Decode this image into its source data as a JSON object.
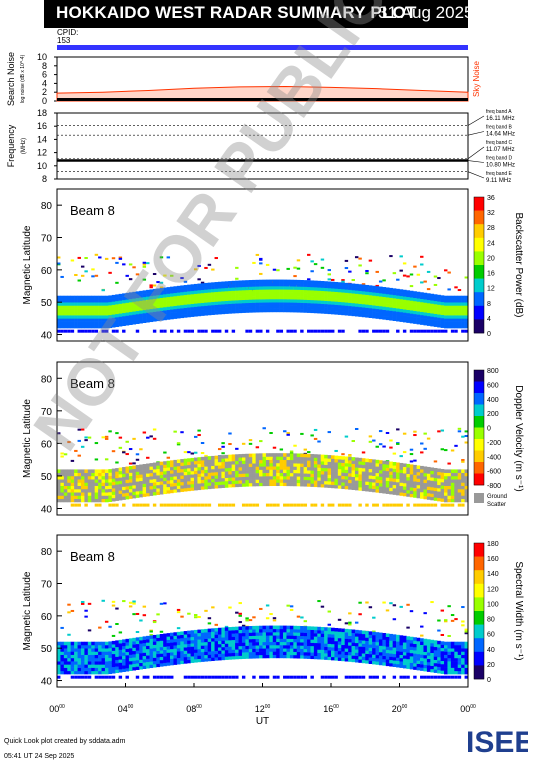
{
  "header": {
    "title": "HOKKAIDO WEST RADAR SUMMARY PLOT",
    "date": "31 Aug 2025",
    "cpid_label": "CPID:",
    "cpid_value": "153"
  },
  "watermark": "NOT FOR PUBLICATION",
  "footer": {
    "line1": "Quick Look plot created by sddata.adm",
    "line2": "05:41 UT 24 Sep 2025"
  },
  "logo_text": "ISEE",
  "colors": {
    "cpid_bar": "#3333ff",
    "noise_red": "#ff3300",
    "title_bg": "#000000",
    "logo_blue": "#1f3f8f",
    "logo_green": "#3aaa35"
  },
  "chart_data": [
    {
      "type": "area",
      "panel": "search_noise",
      "ylabel": "Search Noise",
      "ylabel_sub": "log noise (dB x 10^-4)",
      "series": [
        {
          "name": "Sky Noise",
          "values": [
            1.8,
            2.0,
            2.4,
            2.9,
            3.2,
            3.3,
            3.1,
            2.8,
            2.4,
            2.0
          ]
        }
      ],
      "ylim": [
        0,
        10
      ],
      "yticks": [
        "10",
        "8",
        "6",
        "4",
        "2",
        "0"
      ]
    },
    {
      "type": "line",
      "panel": "frequency",
      "ylabel": "Frequency",
      "ylabel_unit": "(MHz)",
      "ylim": [
        8,
        18
      ],
      "yticks": [
        "18",
        "16",
        "14",
        "12",
        "10",
        "8"
      ],
      "freq_bands": [
        {
          "label": "freq band A",
          "value": "16.11 MHz",
          "mhz": 16.11
        },
        {
          "label": "freq band B",
          "value": "14.64 MHz",
          "mhz": 14.64
        },
        {
          "label": "freq band C",
          "value": "11.07 MHz",
          "mhz": 11.07
        },
        {
          "label": "freq band D",
          "value": "10.80 MHz",
          "mhz": 10.8
        },
        {
          "label": "freq band E",
          "value": "9.11 MHz",
          "mhz": 9.11
        }
      ],
      "operating_mhz": 10.8
    },
    {
      "type": "heatmap",
      "panel": "power",
      "beam_label": "Beam  8",
      "ylabel": "Magnetic Latitude",
      "yticks": [
        "80",
        "70",
        "60",
        "50",
        "40"
      ],
      "ylim": [
        38,
        85
      ],
      "colorbar_label": "Backscatter Power (dB)",
      "colorbar_ticks": [
        "36",
        "32",
        "28",
        "24",
        "20",
        "16",
        "12",
        "8",
        "4",
        "0"
      ],
      "colorbar_colors": [
        "#ff0000",
        "#ff6600",
        "#ffcc00",
        "#ffff00",
        "#99ff00",
        "#00cc00",
        "#00cccc",
        "#0066ff",
        "#0000ff",
        "#1a0066"
      ],
      "ground_scatter_label": ""
    },
    {
      "type": "heatmap",
      "panel": "velocity",
      "beam_label": "Beam  8",
      "ylabel": "Magnetic Latitude",
      "yticks": [
        "80",
        "70",
        "60",
        "50",
        "40"
      ],
      "ylim": [
        38,
        85
      ],
      "colorbar_label": "Doppler Velocity (m s⁻¹)",
      "colorbar_ticks": [
        "800",
        "600",
        "400",
        "200",
        "0",
        "-200",
        "-400",
        "-600",
        "-800"
      ],
      "colorbar_colors": [
        "#1a0066",
        "#0000ff",
        "#0066ff",
        "#00cccc",
        "#00cc00",
        "#99ff00",
        "#ffff00",
        "#ffcc00",
        "#ff6600",
        "#ff0000"
      ],
      "ground_scatter_label": "Ground\nScatter",
      "ground_scatter_color": "#999999"
    },
    {
      "type": "heatmap",
      "panel": "width",
      "beam_label": "Beam  8",
      "ylabel": "Magnetic Latitude",
      "yticks": [
        "80",
        "70",
        "60",
        "50",
        "40"
      ],
      "ylim": [
        38,
        85
      ],
      "colorbar_label": "Spectral Width (m s⁻¹)",
      "colorbar_ticks": [
        "180",
        "160",
        "140",
        "120",
        "100",
        "80",
        "60",
        "40",
        "20",
        "0"
      ],
      "colorbar_colors": [
        "#ff0000",
        "#ff6600",
        "#ffcc00",
        "#ffff00",
        "#99ff00",
        "#00cc00",
        "#00cccc",
        "#0066ff",
        "#0000ff",
        "#1a0066"
      ],
      "ground_scatter_label": ""
    }
  ],
  "x_axis": {
    "label": "UT",
    "ticks": [
      "00",
      "04",
      "08",
      "12",
      "16",
      "20",
      "00"
    ],
    "tick_sup": "00"
  }
}
